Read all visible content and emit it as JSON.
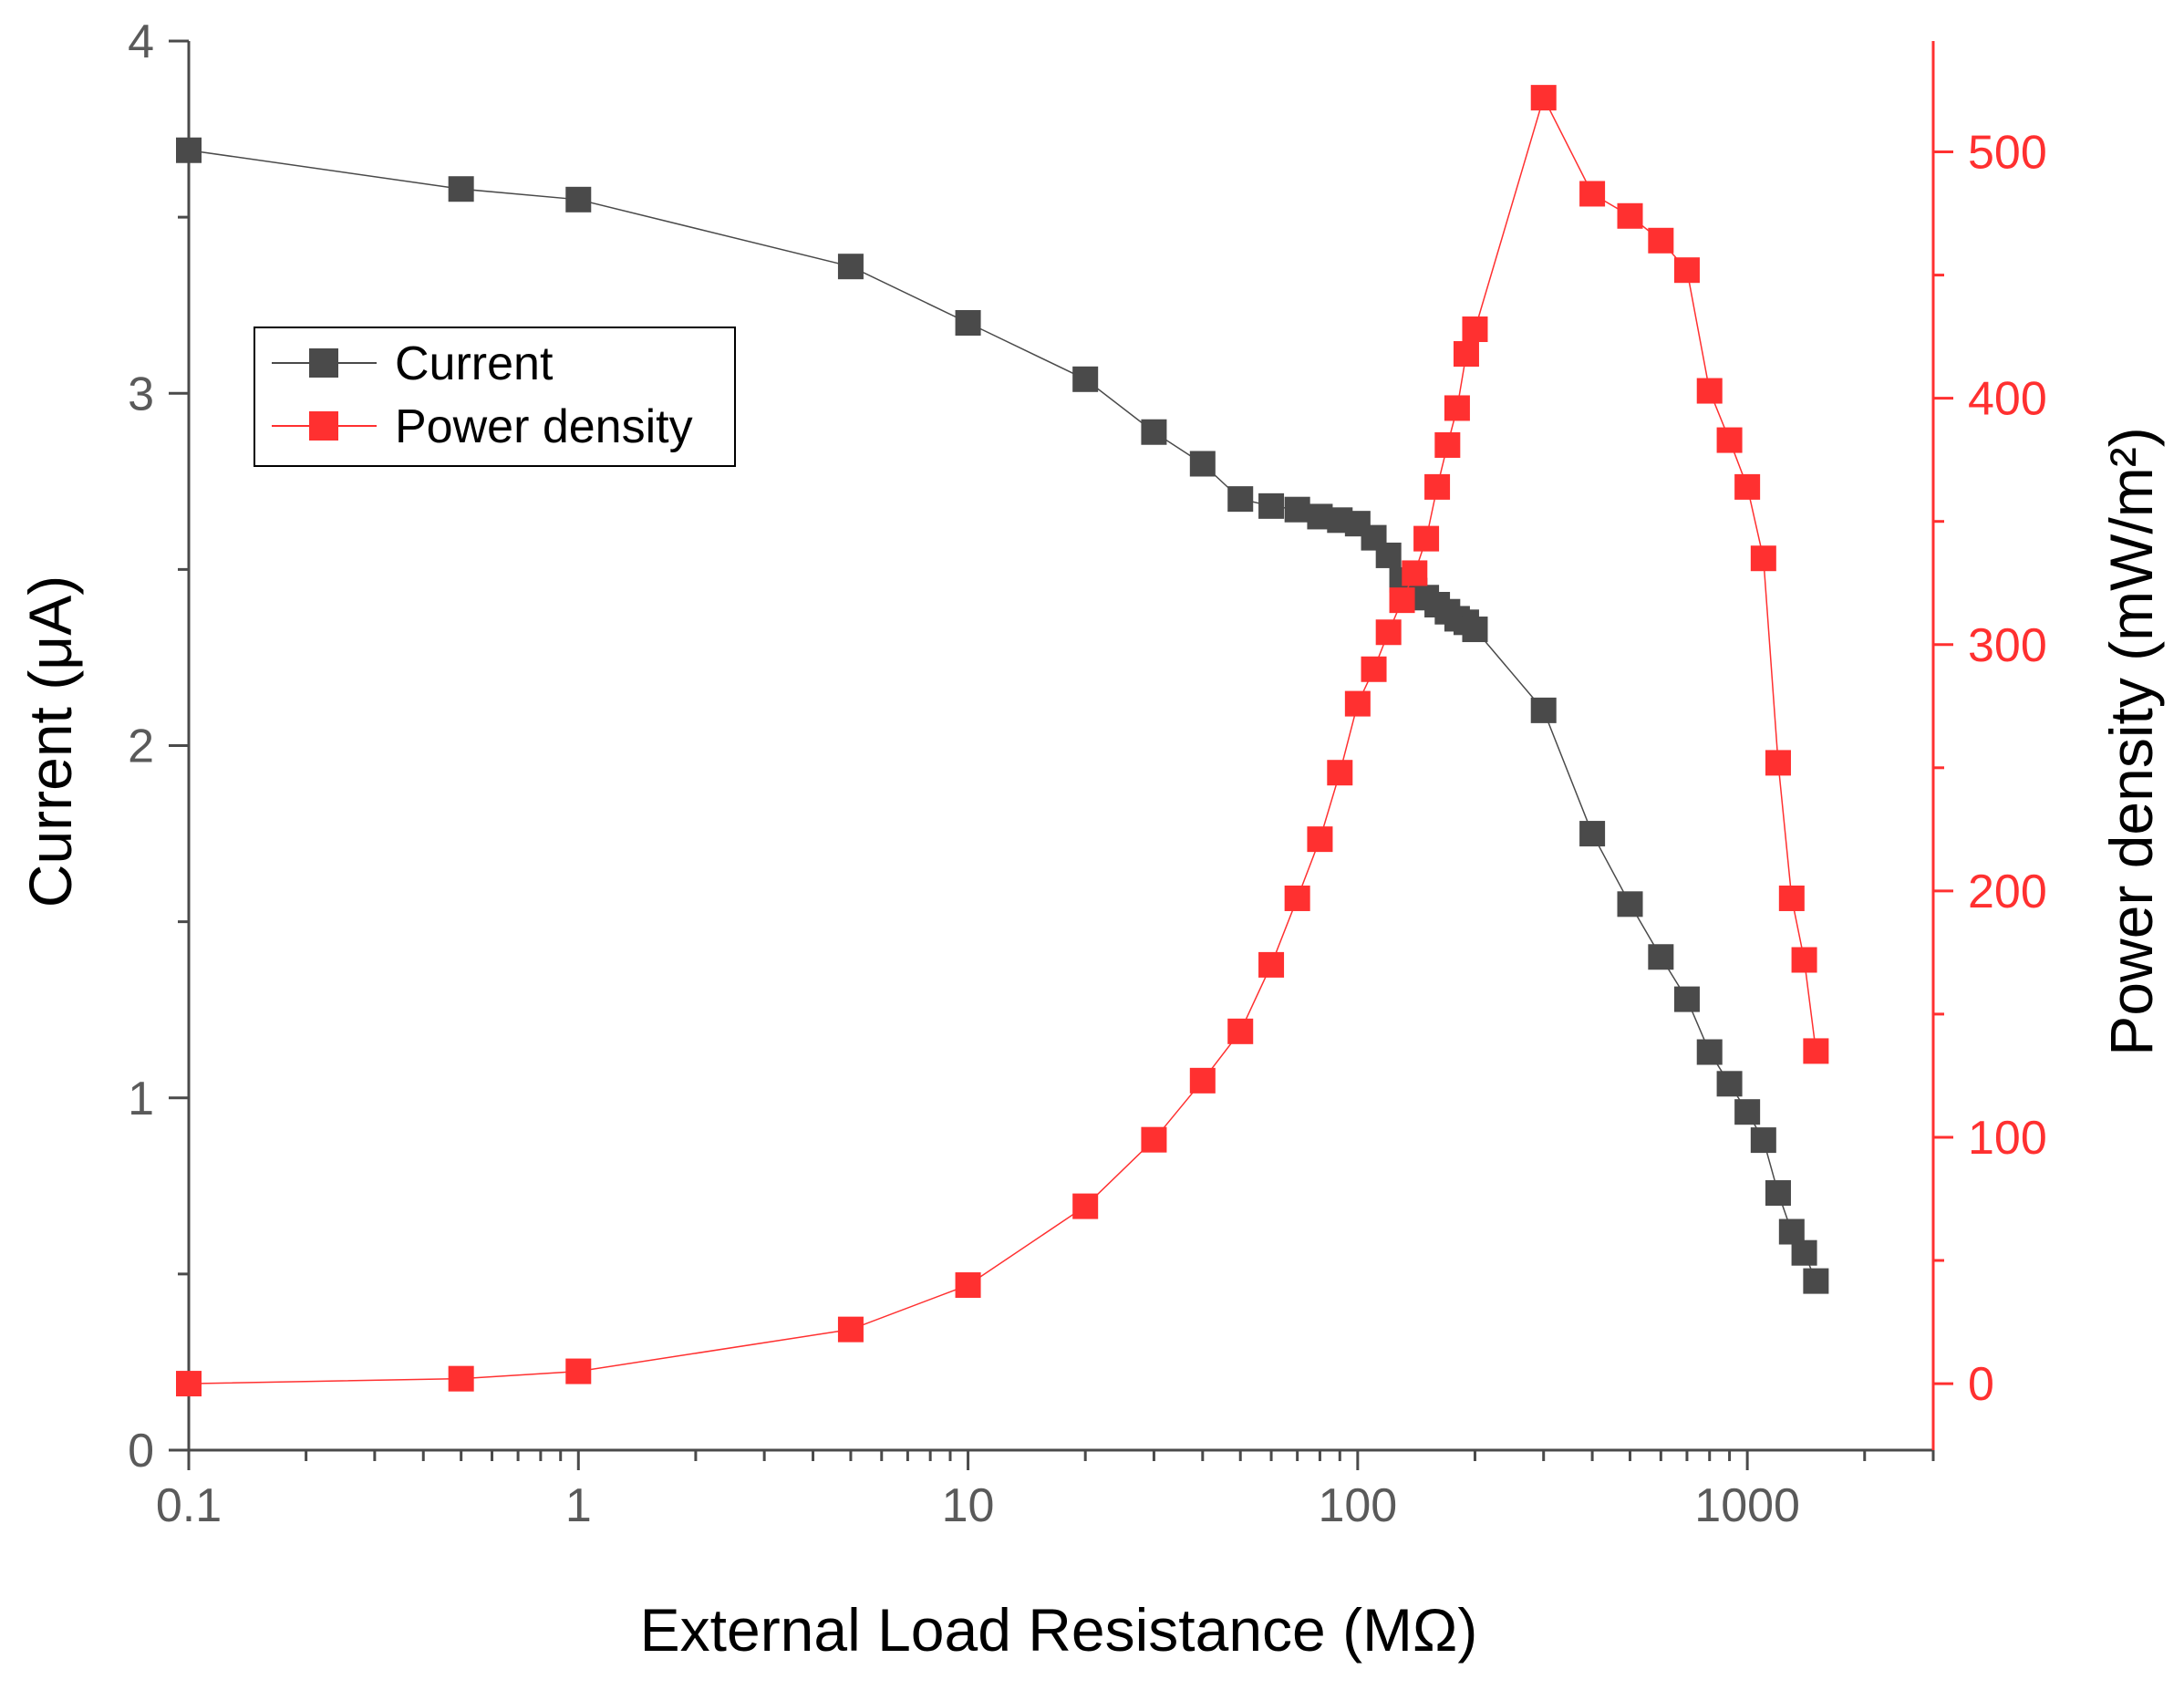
{
  "chart_data": {
    "type": "line",
    "x_scale": "log",
    "xlabel": "External Load Resistance (MΩ)",
    "ylabel": "Current (μA)",
    "y2label": "Power density (mW/m²)",
    "xlim": [
      0.1,
      3000
    ],
    "ylim": [
      0,
      4
    ],
    "y2lim": [
      -27,
      545
    ],
    "x_ticks": [
      0.1,
      1,
      10,
      100,
      1000
    ],
    "x_tick_labels": [
      "0.1",
      "1",
      "10",
      "100",
      "1000"
    ],
    "y_ticks": [
      0,
      1,
      2,
      3,
      4
    ],
    "y_tick_labels": [
      "0",
      "1",
      "2",
      "3",
      "4"
    ],
    "y2_ticks": [
      0,
      100,
      200,
      300,
      400,
      500
    ],
    "y2_tick_labels": [
      "0",
      "100",
      "200",
      "300",
      "400",
      "500"
    ],
    "legend_position": "upper-left",
    "grid": false,
    "series": [
      {
        "name": "Current",
        "axis": "left",
        "color": "#4a4a4a",
        "x": [
          0.1,
          0.5,
          1,
          5,
          10,
          20,
          30,
          40,
          50,
          60,
          70,
          80,
          90,
          100,
          110,
          120,
          130,
          140,
          150,
          160,
          170,
          180,
          190,
          200,
          300,
          400,
          500,
          600,
          700,
          800,
          900,
          1000,
          1100,
          1200,
          1300,
          1400,
          1500
        ],
        "values": [
          3.69,
          3.58,
          3.55,
          3.36,
          3.2,
          3.04,
          2.89,
          2.8,
          2.7,
          2.68,
          2.67,
          2.65,
          2.64,
          2.63,
          2.59,
          2.54,
          2.47,
          2.44,
          2.42,
          2.4,
          2.38,
          2.36,
          2.35,
          2.33,
          2.1,
          1.75,
          1.55,
          1.4,
          1.28,
          1.13,
          1.04,
          0.96,
          0.88,
          0.73,
          0.62,
          0.56,
          0.48
        ]
      },
      {
        "name": "Power density",
        "axis": "right",
        "color": "#ff3030",
        "x": [
          0.1,
          0.5,
          1,
          5,
          10,
          20,
          30,
          40,
          50,
          60,
          70,
          80,
          90,
          100,
          110,
          120,
          130,
          140,
          150,
          160,
          170,
          180,
          190,
          200,
          300,
          400,
          500,
          600,
          700,
          800,
          900,
          1000,
          1100,
          1200,
          1300,
          1400,
          1500
        ],
        "values": [
          0,
          2,
          5,
          22,
          40,
          72,
          99,
          123,
          143,
          170,
          197,
          221,
          248,
          276,
          290,
          305,
          318,
          329,
          343,
          364,
          381,
          396,
          418,
          428,
          522,
          483,
          474,
          464,
          452,
          403,
          383,
          364,
          335,
          252,
          197,
          172,
          135
        ]
      }
    ]
  }
}
